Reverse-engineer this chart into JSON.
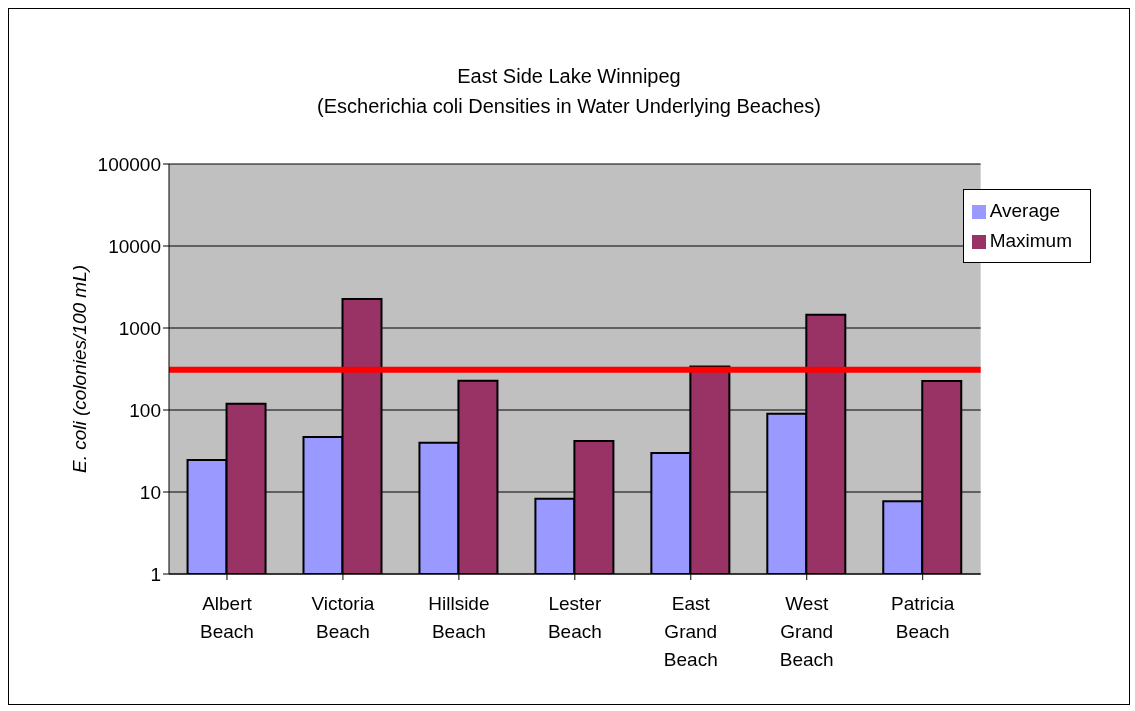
{
  "chart_data": {
    "type": "bar",
    "title": "East Side Lake Winnipeg",
    "subtitle": "(Escherichia coli Densities in Water Underlying Beaches)",
    "ylabel": "E. coli  (colonies/100 mL)",
    "categories": [
      "Albert Beach",
      "Victoria Beach",
      "Hillside Beach",
      "Lester Beach",
      "East Grand Beach",
      "West Grand Beach",
      "Patricia Beach"
    ],
    "series": [
      {
        "name": "Average",
        "color": "#9999ff",
        "values": [
          24.5,
          47,
          40,
          8.3,
          30,
          90,
          7.7
        ]
      },
      {
        "name": "Maximum",
        "color": "#993366",
        "values": [
          119,
          2250,
          227,
          42,
          340,
          1450,
          226
        ]
      }
    ],
    "log": "y",
    "ylim": [
      1,
      100000
    ],
    "yticks": [
      1,
      10,
      100,
      1000,
      10000,
      100000
    ],
    "grid": "y",
    "legend": "top right",
    "ref_lines": [
      {
        "axis": "y",
        "value": 310,
        "color": "#ff0000"
      }
    ]
  }
}
